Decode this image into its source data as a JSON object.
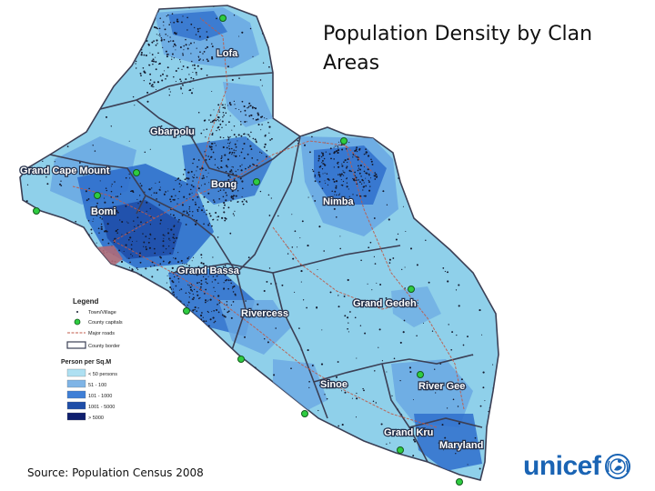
{
  "title": "Population Density by Clan Areas",
  "source": "Source: Population Census 2008",
  "logo": {
    "text": "unicef",
    "color": "#1a64b4",
    "icon": "unicef-emblem-icon"
  },
  "colors": {
    "background": "#8fd0ea",
    "medium": "#6aa8e3",
    "high": "#2f6fcc",
    "county_border": "#3b3f55",
    "road": "#c05a48",
    "coast_city": "#b06a78"
  },
  "counties": [
    {
      "key": "lofa",
      "name": "Lofa"
    },
    {
      "key": "gbarpolu",
      "name": "Gbarpolu"
    },
    {
      "key": "grand-cape-mount",
      "name": "Grand Cape Mount"
    },
    {
      "key": "bong",
      "name": "Bong"
    },
    {
      "key": "bomi",
      "name": "Bomi"
    },
    {
      "key": "nimba",
      "name": "Nimba"
    },
    {
      "key": "grand-bassa",
      "name": "Grand Bassa"
    },
    {
      "key": "grand-gedeh",
      "name": "Grand Gedeh"
    },
    {
      "key": "rivercess",
      "name": "Rivercess"
    },
    {
      "key": "sinoe",
      "name": "Sinoe"
    },
    {
      "key": "river-gee",
      "name": "River Gee"
    },
    {
      "key": "grand-kru",
      "name": "Grand Kru"
    },
    {
      "key": "maryland",
      "name": "Maryland"
    }
  ],
  "legend": {
    "title": "Legend",
    "items": [
      {
        "label": "Town/Village",
        "symbol": "dot"
      },
      {
        "label": "County capitals",
        "symbol": "capital"
      },
      {
        "label": "Major roads",
        "symbol": "road"
      },
      {
        "label": "County border",
        "symbol": "border"
      }
    ],
    "density_title": "Person per Sq.M",
    "density_classes": [
      {
        "label": "< 50 persons",
        "color": "#aee0f2"
      },
      {
        "label": "51 - 100",
        "color": "#7fb4e6"
      },
      {
        "label": "101 - 1000",
        "color": "#3f7fd6"
      },
      {
        "label": "1001 - 5000",
        "color": "#1f4ea8"
      },
      {
        "label": "> 5000",
        "color": "#0f1f6e"
      }
    ]
  }
}
